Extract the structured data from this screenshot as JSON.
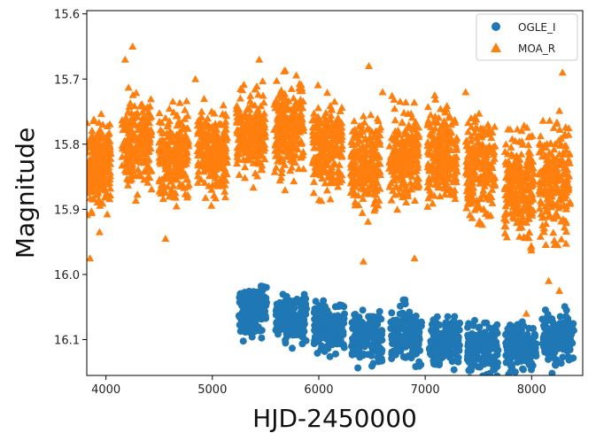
{
  "chart_data": {
    "type": "scatter",
    "title": "",
    "xlabel": "HJD-2450000",
    "ylabel": "Magnitude",
    "xlim": [
      3820,
      8480
    ],
    "ylim": [
      16.155,
      15.595
    ],
    "y_inverted": true,
    "grid": false,
    "legend_position": "top-right",
    "x_ticks": [
      "4000",
      "5000",
      "6000",
      "7000",
      "8000"
    ],
    "x_tick_values": [
      4000,
      5000,
      6000,
      7000,
      8000
    ],
    "y_ticks": [
      "15.6",
      "15.7",
      "15.8",
      "15.9",
      "16.0",
      "16.1"
    ],
    "y_tick_values": [
      15.6,
      15.7,
      15.8,
      15.9,
      16.0,
      16.1
    ],
    "series": [
      {
        "name": "OGLE_I",
        "marker": "circle",
        "color": "#1f77b4",
        "seasons": [
          {
            "x_center": 5380,
            "x_width": 260,
            "y_center": 16.055,
            "y_spread": 0.045
          },
          {
            "x_center": 5740,
            "x_width": 290,
            "y_center": 16.07,
            "y_spread": 0.045
          },
          {
            "x_center": 6100,
            "x_width": 290,
            "y_center": 16.08,
            "y_spread": 0.045
          },
          {
            "x_center": 6450,
            "x_width": 290,
            "y_center": 16.095,
            "y_spread": 0.05
          },
          {
            "x_center": 6820,
            "x_width": 290,
            "y_center": 16.095,
            "y_spread": 0.05
          },
          {
            "x_center": 7180,
            "x_width": 290,
            "y_center": 16.1,
            "y_spread": 0.045
          },
          {
            "x_center": 7540,
            "x_width": 290,
            "y_center": 16.115,
            "y_spread": 0.05
          },
          {
            "x_center": 7900,
            "x_width": 290,
            "y_center": 16.11,
            "y_spread": 0.045
          },
          {
            "x_center": 8250,
            "x_width": 300,
            "y_center": 16.095,
            "y_spread": 0.05
          }
        ]
      },
      {
        "name": "MOA_R",
        "marker": "triangle",
        "color": "#ff7f0e",
        "seasons": [
          {
            "x_center": 3930,
            "x_width": 230,
            "y_center": 15.83,
            "y_spread": 0.09
          },
          {
            "x_center": 4290,
            "x_width": 280,
            "y_center": 15.8,
            "y_spread": 0.085
          },
          {
            "x_center": 4640,
            "x_width": 280,
            "y_center": 15.82,
            "y_spread": 0.085
          },
          {
            "x_center": 5000,
            "x_width": 280,
            "y_center": 15.81,
            "y_spread": 0.08
          },
          {
            "x_center": 5360,
            "x_width": 280,
            "y_center": 15.785,
            "y_spread": 0.075
          },
          {
            "x_center": 5720,
            "x_width": 280,
            "y_center": 15.78,
            "y_spread": 0.085
          },
          {
            "x_center": 6080,
            "x_width": 280,
            "y_center": 15.8,
            "y_spread": 0.08
          },
          {
            "x_center": 6440,
            "x_width": 280,
            "y_center": 15.83,
            "y_spread": 0.085
          },
          {
            "x_center": 6800,
            "x_width": 280,
            "y_center": 15.82,
            "y_spread": 0.085
          },
          {
            "x_center": 7160,
            "x_width": 280,
            "y_center": 15.82,
            "y_spread": 0.085
          },
          {
            "x_center": 7520,
            "x_width": 280,
            "y_center": 15.84,
            "y_spread": 0.09
          },
          {
            "x_center": 7880,
            "x_width": 280,
            "y_center": 15.86,
            "y_spread": 0.1
          },
          {
            "x_center": 8220,
            "x_width": 300,
            "y_center": 15.86,
            "y_spread": 0.11
          }
        ],
        "outliers": [
          [
            4250,
            15.65
          ],
          [
            4180,
            15.67
          ],
          [
            5440,
            15.67
          ],
          [
            6470,
            15.68
          ],
          [
            6600,
            15.72
          ],
          [
            8290,
            15.69
          ],
          [
            3850,
            15.975
          ],
          [
            4560,
            15.945
          ],
          [
            6420,
            15.98
          ],
          [
            6900,
            15.975
          ],
          [
            8160,
            16.01
          ],
          [
            8260,
            16.025
          ],
          [
            7950,
            16.06
          ],
          [
            3940,
            15.935
          ],
          [
            7380,
            15.72
          ],
          [
            4840,
            15.7
          ]
        ]
      }
    ]
  }
}
